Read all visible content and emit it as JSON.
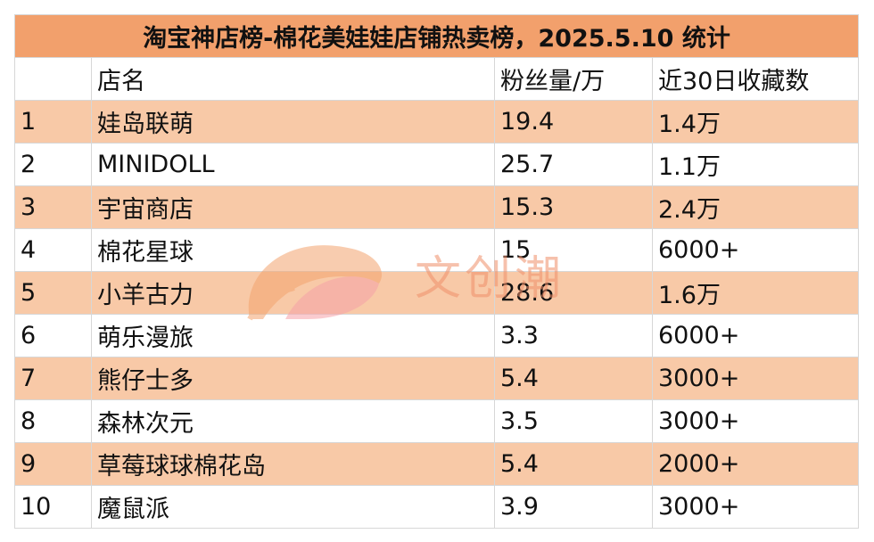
{
  "title": "淘宝神店榜-棉花美娃娃店铺热卖榜，2025.5.10 统计",
  "headers": [
    "",
    "店名",
    "粉丝量/万",
    "近30日收藏数"
  ],
  "rows": [
    {
      "rank": "1",
      "name": "娃岛联萌",
      "fans": "19.4",
      "saves": "1.4万"
    },
    {
      "rank": "2",
      "name": "MINIDOLL",
      "fans": "25.7",
      "saves": "1.1万"
    },
    {
      "rank": "3",
      "name": "宇宙商店",
      "fans": "15.3",
      "saves": "2.4万"
    },
    {
      "rank": "4",
      "name": "棉花星球",
      "fans": "15",
      "saves": "6000+"
    },
    {
      "rank": "5",
      "name": "小羊古力",
      "fans": "28.6",
      "saves": "1.6万"
    },
    {
      "rank": "6",
      "name": "萌乐漫旅",
      "fans": "3.3",
      "saves": "6000+"
    },
    {
      "rank": "7",
      "name": "熊仔士多",
      "fans": "5.4",
      "saves": "3000+"
    },
    {
      "rank": "8",
      "name": "森林次元",
      "fans": "3.5",
      "saves": "3000+"
    },
    {
      "rank": "9",
      "name": "草莓球球棉花岛",
      "fans": "5.4",
      "saves": "2000+"
    },
    {
      "rank": "10",
      "name": "魔鼠派",
      "fans": "3.9",
      "saves": "3000+"
    }
  ],
  "watermark": {
    "text": "文创潮",
    "logo_icon": "peach-leaf-logo-icon"
  },
  "colors": {
    "title_bg": "#f2a06c",
    "odd_row_bg": "#f8c9a7",
    "even_row_bg": "#ffffff",
    "grid": "#d7d7d7"
  }
}
